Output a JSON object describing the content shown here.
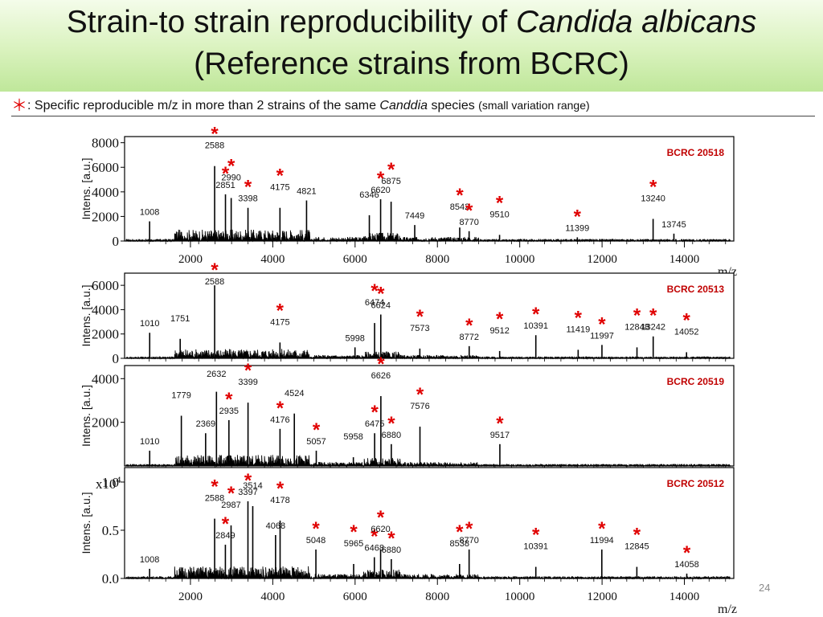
{
  "title": {
    "line1_prefix": "Strain-to strain reproducibility of ",
    "line1_italic": "Candida albicans",
    "line2": "(Reference strains from BCRC)"
  },
  "subtitle": {
    "marker": "＊",
    "text_before": ": Specific reproducible m/z in more than 2 strains of the same ",
    "italic": "Canddia",
    "text_after": " species ",
    "small": "(small variation range)"
  },
  "page_number": "24",
  "colors": {
    "star": "#e00000",
    "strain_label": "#c00000",
    "trace": "#000000"
  },
  "chart_data": [
    {
      "type": "line",
      "strain": "BCRC 20518",
      "ylabel": "Intens. [a.u.]",
      "xlim": [
        400,
        15200
      ],
      "ylim": [
        0,
        8500
      ],
      "yticks": [
        0,
        2000,
        4000,
        6000,
        8000
      ],
      "xticks": [
        2000,
        4000,
        6000,
        8000,
        10000,
        12000,
        14000
      ],
      "xlabel": "m/z",
      "peaks": [
        {
          "mz": 1008,
          "h": 1600,
          "label": "1008"
        },
        {
          "mz": 2588,
          "h": 6100,
          "label": "2588",
          "star": true
        },
        {
          "mz": 2851,
          "h": 3800,
          "label": "2851",
          "star": true
        },
        {
          "mz": 2990,
          "h": 3500,
          "label": "2990",
          "star": true
        },
        {
          "mz": 3398,
          "h": 2700,
          "label": "3398",
          "star": true
        },
        {
          "mz": 4175,
          "h": 2700,
          "label": "4175",
          "star": true
        },
        {
          "mz": 4821,
          "h": 3300,
          "label": "4821"
        },
        {
          "mz": 6346,
          "h": 2100,
          "label": "6346"
        },
        {
          "mz": 6620,
          "h": 3400,
          "label": "6620",
          "star": true
        },
        {
          "mz": 6875,
          "h": 3200,
          "label": "6875",
          "star": true
        },
        {
          "mz": 7449,
          "h": 1300,
          "label": "7449"
        },
        {
          "mz": 8542,
          "h": 1100,
          "label": "8542",
          "star": true
        },
        {
          "mz": 8770,
          "h": 800,
          "label": "8770",
          "star": true
        },
        {
          "mz": 9510,
          "h": 500,
          "label": "9510",
          "star": true
        },
        {
          "mz": 11399,
          "h": 300,
          "label": "11399",
          "star": true
        },
        {
          "mz": 13240,
          "h": 1800,
          "label": "13240",
          "star": true
        },
        {
          "mz": 13745,
          "h": 600,
          "label": "13745"
        }
      ]
    },
    {
      "type": "line",
      "strain": "BCRC 20513",
      "ylabel": "Intens. [a.u.]",
      "xlim": [
        400,
        15200
      ],
      "ylim": [
        0,
        7000
      ],
      "yticks": [
        0,
        2000,
        4000,
        6000
      ],
      "xlabel": "",
      "peaks": [
        {
          "mz": 1010,
          "h": 2100,
          "label": "1010"
        },
        {
          "mz": 1751,
          "h": 1600,
          "label": "1751"
        },
        {
          "mz": 2588,
          "h": 6000,
          "label": "2588",
          "star": true
        },
        {
          "mz": 4175,
          "h": 1300,
          "label": "4175",
          "star": true
        },
        {
          "mz": 5998,
          "h": 900,
          "label": "5998"
        },
        {
          "mz": 6474,
          "h": 2900,
          "label": "6474",
          "star": true
        },
        {
          "mz": 6624,
          "h": 3600,
          "label": "6624",
          "star": true
        },
        {
          "mz": 7573,
          "h": 800,
          "label": "7573",
          "star": true
        },
        {
          "mz": 8772,
          "h": 1000,
          "label": "8772",
          "star": true
        },
        {
          "mz": 9512,
          "h": 600,
          "label": "9512",
          "star": true
        },
        {
          "mz": 10391,
          "h": 1900,
          "label": "10391",
          "star": true
        },
        {
          "mz": 11419,
          "h": 700,
          "label": "11419",
          "star": true
        },
        {
          "mz": 11997,
          "h": 1100,
          "label": "11997",
          "star": true
        },
        {
          "mz": 12848,
          "h": 900,
          "label": "12848",
          "star": true
        },
        {
          "mz": 13242,
          "h": 1800,
          "label": "13242",
          "star": true
        },
        {
          "mz": 14052,
          "h": 500,
          "label": "14052",
          "star": true
        }
      ]
    },
    {
      "type": "line",
      "strain": "BCRC 20519",
      "ylabel": "Intens. [a.u.]",
      "xlim": [
        400,
        15200
      ],
      "ylim": [
        0,
        4600
      ],
      "yticks": [
        2000,
        4000
      ],
      "xlabel": "",
      "peaks": [
        {
          "mz": 1010,
          "h": 700,
          "label": "1010"
        },
        {
          "mz": 1779,
          "h": 2300,
          "label": "1779"
        },
        {
          "mz": 2369,
          "h": 1500,
          "label": "2369"
        },
        {
          "mz": 2632,
          "h": 3400,
          "label": "2632"
        },
        {
          "mz": 2935,
          "h": 2100,
          "label": "2935",
          "star": true
        },
        {
          "mz": 3399,
          "h": 2900,
          "label": "3399",
          "star": true
        },
        {
          "mz": 4176,
          "h": 1700,
          "label": "4176",
          "star": true
        },
        {
          "mz": 4524,
          "h": 2400,
          "label": "4524"
        },
        {
          "mz": 5057,
          "h": 700,
          "label": "5057",
          "star": true
        },
        {
          "mz": 5958,
          "h": 400,
          "label": "5958"
        },
        {
          "mz": 6475,
          "h": 1500,
          "label": "6475",
          "star": true
        },
        {
          "mz": 6626,
          "h": 3200,
          "label": "6626",
          "star": true
        },
        {
          "mz": 6880,
          "h": 1000,
          "label": "6880",
          "star": true
        },
        {
          "mz": 7576,
          "h": 1800,
          "label": "7576",
          "star": true
        },
        {
          "mz": 9517,
          "h": 1000,
          "label": "9517",
          "star": true
        }
      ]
    },
    {
      "type": "line",
      "strain": "BCRC 20512",
      "ylabel": "Intens. [a.u.]",
      "yscale": "x10^4",
      "xlim": [
        400,
        15200
      ],
      "ylim": [
        0,
        1.15
      ],
      "yticks": [
        0.0,
        0.5,
        1.0
      ],
      "xticks": [
        2000,
        4000,
        6000,
        8000,
        10000,
        12000,
        14000
      ],
      "xlabel": "m/z",
      "peaks": [
        {
          "mz": 1008,
          "h": 0.1,
          "label": "1008"
        },
        {
          "mz": 2588,
          "h": 0.62,
          "label": "2588",
          "star": true
        },
        {
          "mz": 2849,
          "h": 0.35,
          "label": "2849",
          "star": true
        },
        {
          "mz": 2987,
          "h": 0.55,
          "label": "2987",
          "star": true
        },
        {
          "mz": 3397,
          "h": 0.8,
          "label": "3397",
          "star": true
        },
        {
          "mz": 3514,
          "h": 0.75,
          "label": "3514"
        },
        {
          "mz": 4068,
          "h": 0.45,
          "label": "4068"
        },
        {
          "mz": 4178,
          "h": 0.6,
          "label": "4178",
          "star": true
        },
        {
          "mz": 5048,
          "h": 0.3,
          "label": "5048",
          "star": true
        },
        {
          "mz": 5965,
          "h": 0.15,
          "label": "5965",
          "star": true
        },
        {
          "mz": 6468,
          "h": 0.22,
          "label": "6468",
          "star": true
        },
        {
          "mz": 6620,
          "h": 0.3,
          "label": "6620",
          "star": true
        },
        {
          "mz": 6880,
          "h": 0.2,
          "label": "6880",
          "star": true
        },
        {
          "mz": 8538,
          "h": 0.15,
          "label": "8538",
          "star": true
        },
        {
          "mz": 8770,
          "h": 0.3,
          "label": "8770",
          "star": true
        },
        {
          "mz": 10391,
          "h": 0.12,
          "label": "10391",
          "star": true
        },
        {
          "mz": 11994,
          "h": 0.3,
          "label": "11994",
          "star": true
        },
        {
          "mz": 12845,
          "h": 0.12,
          "label": "12845",
          "star": true
        },
        {
          "mz": 14058,
          "h": 0.05,
          "label": "14058",
          "star": true
        }
      ]
    }
  ]
}
